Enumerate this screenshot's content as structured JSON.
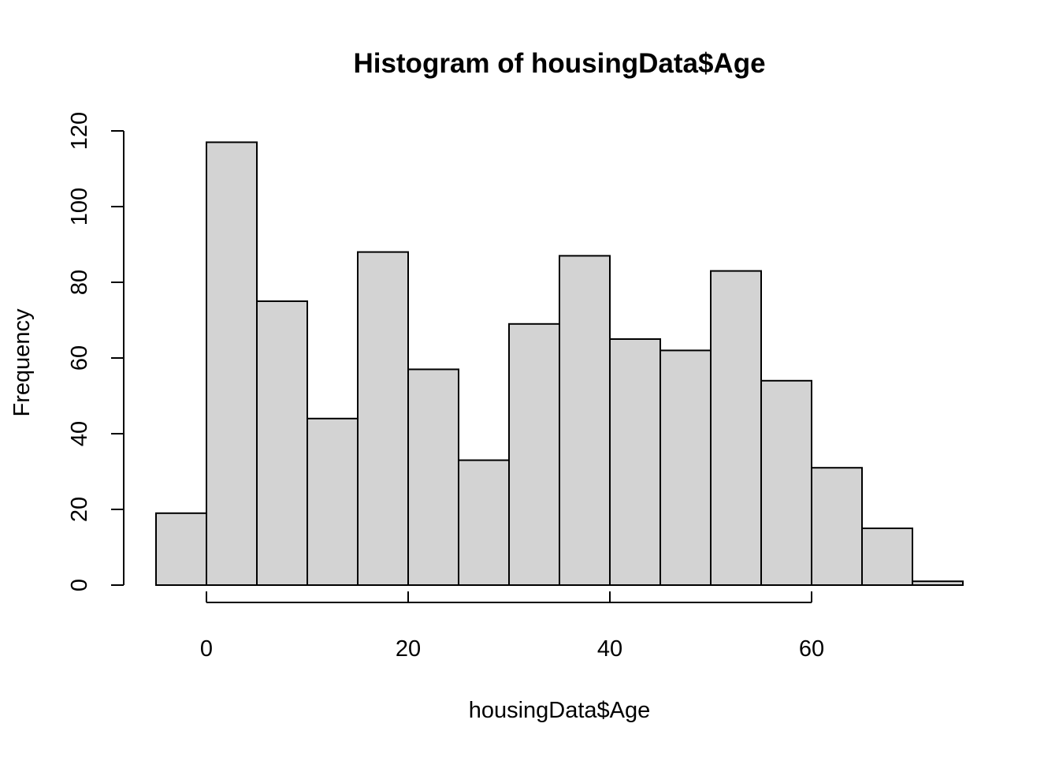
{
  "chart_data": {
    "type": "bar",
    "title": "Histogram of housingData$Age",
    "xlabel": "housingData$Age",
    "ylabel": "Frequency",
    "bin_edges": [
      -5,
      0,
      5,
      10,
      15,
      20,
      25,
      30,
      35,
      40,
      45,
      50,
      55,
      60,
      65,
      70,
      75
    ],
    "values": [
      19,
      117,
      75,
      44,
      88,
      57,
      33,
      69,
      87,
      65,
      62,
      83,
      54,
      31,
      15,
      1
    ],
    "x_ticks": [
      0,
      20,
      40,
      60
    ],
    "y_ticks": [
      0,
      20,
      40,
      60,
      80,
      100,
      120
    ],
    "xlim": [
      -5,
      75
    ],
    "ylim": [
      0,
      120
    ],
    "grid": false,
    "colors": {
      "bar_fill": "#d3d3d3",
      "bar_stroke": "#000000"
    }
  }
}
